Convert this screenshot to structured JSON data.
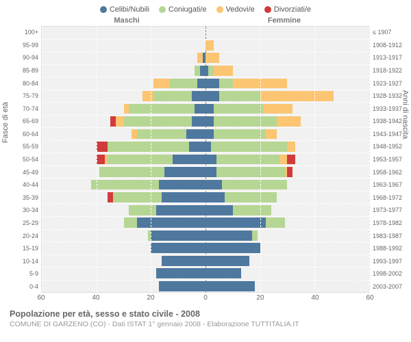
{
  "legend": {
    "items": [
      {
        "label": "Celibi/Nubili",
        "color": "#4f789f"
      },
      {
        "label": "Coniugati/e",
        "color": "#b6d693"
      },
      {
        "label": "Vedovi/e",
        "color": "#fcc572"
      },
      {
        "label": "Divorziati/e",
        "color": "#d13b3b"
      }
    ]
  },
  "gender": {
    "male": "Maschi",
    "female": "Femmine"
  },
  "axis": {
    "left_title": "Fasce di età",
    "right_title": "Anni di nascita",
    "x_max": 60,
    "x_ticks": [
      60,
      40,
      20,
      0,
      20,
      40,
      60
    ]
  },
  "colors": {
    "single": "#4f789f",
    "married": "#b6d693",
    "widowed": "#fcc572",
    "divorced": "#d13b3b",
    "plot_bg": "#f1f1f1",
    "grid": "#ffffff",
    "center": "#888888"
  },
  "rows": [
    {
      "age": "100+",
      "birth": "≤ 1907",
      "m": {
        "s": 0,
        "m": 0,
        "w": 0,
        "d": 0
      },
      "f": {
        "s": 0,
        "m": 0,
        "w": 0,
        "d": 0
      }
    },
    {
      "age": "95-99",
      "birth": "1908-1912",
      "m": {
        "s": 0,
        "m": 0,
        "w": 0,
        "d": 0
      },
      "f": {
        "s": 0,
        "m": 0,
        "w": 3,
        "d": 0
      }
    },
    {
      "age": "90-94",
      "birth": "1913-1917",
      "m": {
        "s": 1,
        "m": 0,
        "w": 2,
        "d": 0
      },
      "f": {
        "s": 0,
        "m": 0,
        "w": 5,
        "d": 0
      }
    },
    {
      "age": "85-89",
      "birth": "1918-1922",
      "m": {
        "s": 2,
        "m": 2,
        "w": 0,
        "d": 0
      },
      "f": {
        "s": 1,
        "m": 2,
        "w": 7,
        "d": 0
      }
    },
    {
      "age": "80-84",
      "birth": "1923-1927",
      "m": {
        "s": 3,
        "m": 10,
        "w": 6,
        "d": 0
      },
      "f": {
        "s": 5,
        "m": 5,
        "w": 20,
        "d": 0
      }
    },
    {
      "age": "75-79",
      "birth": "1928-1932",
      "m": {
        "s": 5,
        "m": 14,
        "w": 4,
        "d": 0
      },
      "f": {
        "s": 5,
        "m": 15,
        "w": 27,
        "d": 0
      }
    },
    {
      "age": "70-74",
      "birth": "1933-1937",
      "m": {
        "s": 4,
        "m": 24,
        "w": 2,
        "d": 0
      },
      "f": {
        "s": 3,
        "m": 18,
        "w": 11,
        "d": 0
      }
    },
    {
      "age": "65-69",
      "birth": "1938-1942",
      "m": {
        "s": 5,
        "m": 25,
        "w": 3,
        "d": 2
      },
      "f": {
        "s": 3,
        "m": 23,
        "w": 9,
        "d": 0
      }
    },
    {
      "age": "60-64",
      "birth": "1943-1947",
      "m": {
        "s": 7,
        "m": 18,
        "w": 2,
        "d": 0
      },
      "f": {
        "s": 3,
        "m": 19,
        "w": 4,
        "d": 0
      }
    },
    {
      "age": "55-59",
      "birth": "1948-1952",
      "m": {
        "s": 6,
        "m": 30,
        "w": 0,
        "d": 4
      },
      "f": {
        "s": 2,
        "m": 28,
        "w": 3,
        "d": 0
      }
    },
    {
      "age": "50-54",
      "birth": "1953-1957",
      "m": {
        "s": 12,
        "m": 24,
        "w": 1,
        "d": 3
      },
      "f": {
        "s": 4,
        "m": 23,
        "w": 3,
        "d": 3
      }
    },
    {
      "age": "45-49",
      "birth": "1958-1962",
      "m": {
        "s": 15,
        "m": 24,
        "w": 0,
        "d": 0
      },
      "f": {
        "s": 4,
        "m": 25,
        "w": 1,
        "d": 2
      }
    },
    {
      "age": "40-44",
      "birth": "1963-1967",
      "m": {
        "s": 17,
        "m": 25,
        "w": 0,
        "d": 0
      },
      "f": {
        "s": 6,
        "m": 24,
        "w": 0,
        "d": 0
      }
    },
    {
      "age": "35-39",
      "birth": "1968-1972",
      "m": {
        "s": 16,
        "m": 18,
        "w": 0,
        "d": 2
      },
      "f": {
        "s": 7,
        "m": 19,
        "w": 0,
        "d": 0
      }
    },
    {
      "age": "30-34",
      "birth": "1973-1977",
      "m": {
        "s": 18,
        "m": 10,
        "w": 0,
        "d": 0
      },
      "f": {
        "s": 10,
        "m": 14,
        "w": 0,
        "d": 0
      }
    },
    {
      "age": "25-29",
      "birth": "1978-1982",
      "m": {
        "s": 25,
        "m": 5,
        "w": 0,
        "d": 0
      },
      "f": {
        "s": 22,
        "m": 7,
        "w": 0,
        "d": 0
      }
    },
    {
      "age": "20-24",
      "birth": "1983-1987",
      "m": {
        "s": 20,
        "m": 1,
        "w": 0,
        "d": 0
      },
      "f": {
        "s": 17,
        "m": 2,
        "w": 0,
        "d": 0
      }
    },
    {
      "age": "15-19",
      "birth": "1988-1992",
      "m": {
        "s": 20,
        "m": 0,
        "w": 0,
        "d": 0
      },
      "f": {
        "s": 20,
        "m": 0,
        "w": 0,
        "d": 0
      }
    },
    {
      "age": "10-14",
      "birth": "1993-1997",
      "m": {
        "s": 16,
        "m": 0,
        "w": 0,
        "d": 0
      },
      "f": {
        "s": 16,
        "m": 0,
        "w": 0,
        "d": 0
      }
    },
    {
      "age": "5-9",
      "birth": "1998-2002",
      "m": {
        "s": 18,
        "m": 0,
        "w": 0,
        "d": 0
      },
      "f": {
        "s": 13,
        "m": 0,
        "w": 0,
        "d": 0
      }
    },
    {
      "age": "0-4",
      "birth": "2003-2007",
      "m": {
        "s": 17,
        "m": 0,
        "w": 0,
        "d": 0
      },
      "f": {
        "s": 18,
        "m": 0,
        "w": 0,
        "d": 0
      }
    }
  ],
  "footer": {
    "title": "Popolazione per età, sesso e stato civile - 2008",
    "subtitle": "COMUNE DI GARZENO (CO) - Dati ISTAT 1° gennaio 2008 - Elaborazione TUTTITALIA.IT"
  }
}
